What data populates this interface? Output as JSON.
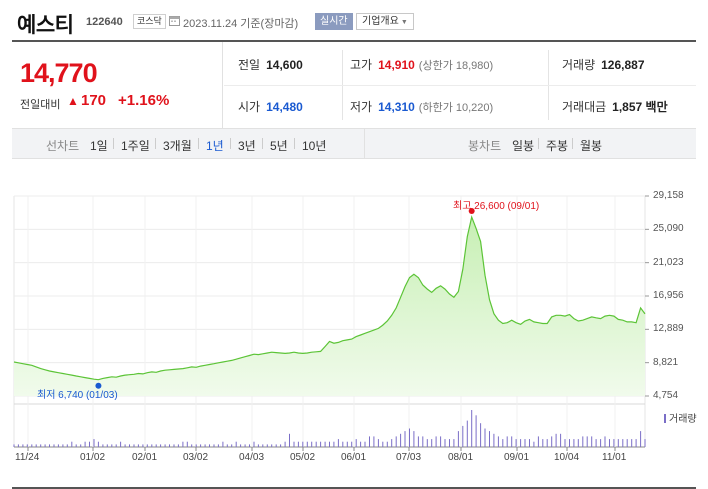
{
  "header": {
    "name": "예스티",
    "code": "122640",
    "market": "코스닥",
    "date_text": "2023.11.24  기준(장마감)",
    "realtime_label": "실시간",
    "company_label": "기업개요"
  },
  "price": {
    "current": "14,770",
    "change_label": "전일대비",
    "change_value": "170",
    "change_pct": "+1.16%",
    "direction": "up",
    "up_color": "#e0121b",
    "down_color": "#1a5ad1"
  },
  "stats": {
    "prev_close": {
      "label": "전일",
      "value": "14,600"
    },
    "high": {
      "label": "고가",
      "value": "14,910",
      "sub": "(상한가 18,980)"
    },
    "volume": {
      "label": "거래량",
      "value": "126,887"
    },
    "open": {
      "label": "시가",
      "value": "14,480"
    },
    "low": {
      "label": "저가",
      "value": "14,310",
      "sub": "(하한가 10,220)"
    },
    "amount": {
      "label": "거래대금",
      "value": "1,857 백만"
    }
  },
  "periods": {
    "line_label": "선차트",
    "line_items": [
      "1일",
      "1주일",
      "3개월",
      "1년",
      "3년",
      "5년",
      "10년"
    ],
    "active": "1년",
    "candle_label": "봉차트",
    "candle_items": [
      "일봉",
      "주봉",
      "월봉"
    ]
  },
  "chart_data": {
    "type": "area",
    "y_ticks": [
      "29,158",
      "25,090",
      "21,023",
      "16,956",
      "12,889",
      "8,821",
      "4,754"
    ],
    "ylim": [
      4754,
      29158
    ],
    "x_ticks": [
      "11/24",
      "01/02",
      "02/01",
      "03/02",
      "04/03",
      "05/02",
      "06/01",
      "07/03",
      "08/01",
      "09/01",
      "10/04",
      "11/01"
    ],
    "high_label": "최고 26,600 (09/01)",
    "low_label": "최저 6,740 (01/03)",
    "high_value": 26600,
    "low_value": 6740,
    "volume_legend": "거래량",
    "line_color": "#5cc437",
    "fill_top": "#c7efb4",
    "fill_bottom": "#f1fbec",
    "high_color": "#e0121b",
    "low_color": "#1a5ad1",
    "volume_color": "#7a6ec7",
    "series": [
      {
        "values": [
          8900,
          8800,
          8700,
          8600,
          8500,
          8300,
          8100,
          7950,
          7800,
          7700,
          7600,
          7500,
          7400,
          7300,
          7200,
          7100,
          7000,
          6900,
          6800,
          6740,
          6900,
          7000,
          7100,
          7050,
          7200,
          7300,
          7350,
          7400,
          7500,
          7450,
          7600,
          7700,
          7650,
          7800,
          7900,
          7950,
          8000,
          8050,
          8100,
          8200,
          8300,
          8250,
          8400,
          8500,
          8600,
          8700,
          8800,
          8900,
          9000,
          9100,
          9250,
          9400,
          9550,
          9700,
          9850,
          9800,
          9900,
          10000,
          10100,
          10050,
          10000,
          9950,
          10000,
          10100,
          10000,
          9950,
          10000,
          10100,
          10150,
          10200,
          10800,
          11400,
          11200,
          11300,
          11500,
          11600,
          11700,
          12000,
          12200,
          12400,
          12600,
          12800,
          13000,
          13400,
          13900,
          14600,
          15500,
          16800,
          18100,
          19200,
          19600,
          19200,
          18300,
          17800,
          17400,
          17900,
          18200,
          17800,
          17200,
          16800,
          17500,
          20200,
          24200,
          26600,
          25200,
          23600,
          19500,
          16500,
          14800,
          14000,
          13600,
          13700,
          14000,
          13700,
          13500,
          13900,
          14100,
          13800,
          13700,
          13600,
          13600,
          14400,
          14600,
          14600,
          14500,
          14700,
          14200,
          13900,
          14000,
          14200,
          14400,
          14300,
          14200,
          14500,
          14600,
          14500,
          14100,
          14000,
          13800,
          13800,
          13700,
          15500,
          14770
        ]
      }
    ],
    "volume": [
      1,
      1,
      1,
      1,
      1,
      1,
      1,
      1,
      1,
      1,
      1,
      1,
      1,
      2,
      1,
      1,
      2,
      2,
      3,
      2,
      1,
      1,
      1,
      1,
      2,
      1,
      1,
      1,
      1,
      1,
      1,
      1,
      1,
      1,
      1,
      1,
      1,
      1,
      2,
      2,
      1,
      1,
      1,
      1,
      1,
      1,
      1,
      2,
      1,
      1,
      2,
      1,
      1,
      1,
      2,
      1,
      1,
      1,
      1,
      1,
      1,
      2,
      5,
      2,
      2,
      2,
      2,
      2,
      2,
      2,
      2,
      2,
      2,
      3,
      2,
      2,
      2,
      3,
      2,
      2,
      4,
      4,
      3,
      2,
      2,
      3,
      4,
      5,
      6,
      7,
      6,
      4,
      4,
      3,
      3,
      4,
      4,
      3,
      3,
      3,
      6,
      8,
      10,
      14,
      12,
      9,
      7,
      6,
      5,
      4,
      3,
      4,
      4,
      3,
      3,
      3,
      3,
      2,
      4,
      3,
      3,
      4,
      5,
      5,
      3,
      3,
      3,
      3,
      4,
      4,
      4,
      3,
      3,
      4,
      3,
      3,
      3,
      3,
      3,
      3,
      3,
      6,
      3
    ]
  }
}
